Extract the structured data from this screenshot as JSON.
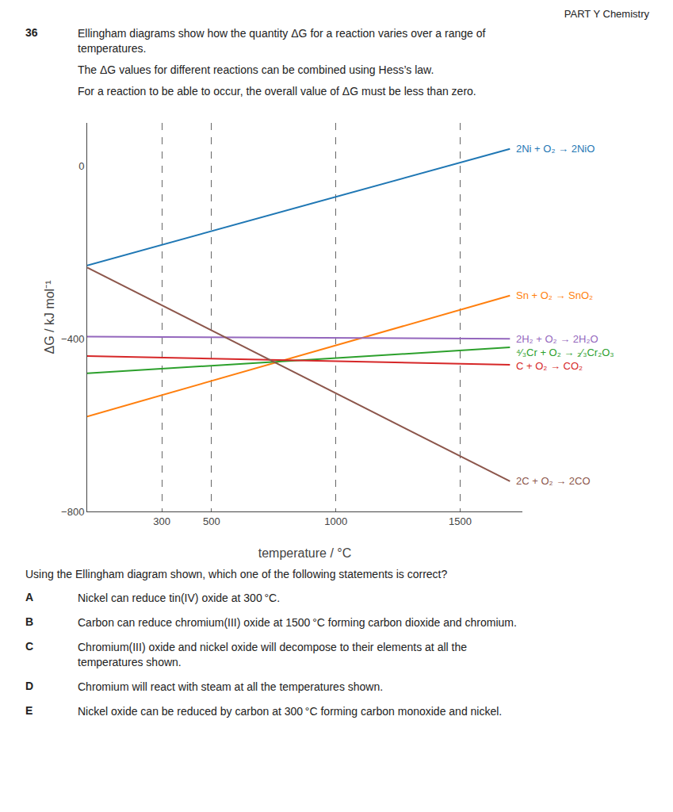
{
  "chart_data": {
    "type": "line",
    "annotations": [
      "PART Y Chemistry",
      "36",
      "Ellingham diagrams show how the quantity ΔG for a reaction varies over a range of",
      "temperatures.",
      "The ΔG values for different reactions can be combined using Hess’s law.",
      "For a reaction to be able to occur, the overall value of ΔG must be less than zero.",
      "Using the Ellingham diagram shown, which one of the following statements is correct?",
      "A",
      "Nickel can reduce tin(IV) oxide at 300 °C.",
      "B",
      "Carbon can reduce chromium(III) oxide at 1500 °C forming carbon dioxide and chromium.",
      "C",
      "Chromium(III) oxide and nickel oxide will decompose to their elements at all the\ntemperatures shown.",
      "D",
      "Chromium will react with steam at all the temperatures shown.",
      "E",
      "Nickel oxide can be reduced by carbon at 300 °C forming carbon monoxide and nickel."
    ],
    "xlabel": "temperature / °C",
    "ylabel": "ΔG / kJ mol⁻¹",
    "x": [
      0,
      1700
    ],
    "series": [
      {
        "name": "2Ni + O₂ → 2NiO",
        "values": [
          -230,
          40
        ]
      },
      {
        "name": "Sn + O₂ → SnO₂",
        "values": [
          -580,
          -300
        ]
      },
      {
        "name": "⁴⁄₃Cr + O₂ → ₂⁄₃Cr₂O₃",
        "values": [
          -480,
          -420
        ]
      },
      {
        "name": "C + O₂ → CO₂",
        "values": [
          -440,
          -460
        ]
      },
      {
        "name": "2H₂ + O₂ → 2H₂O",
        "values": [
          -395,
          -400
        ]
      },
      {
        "name": "2C + O₂ → 2CO",
        "values": [
          -235,
          -730
        ]
      }
    ],
    "xlim": [
      0,
      1750
    ],
    "ylim": [
      -800,
      100
    ],
    "xticks": [
      300,
      500,
      1000,
      1500
    ],
    "yticks": [
      0,
      {
        "value": -400,
        "label": "−400"
      },
      {
        "value": -800,
        "label": "−800"
      }
    ],
    "grid": "x"
  }
}
